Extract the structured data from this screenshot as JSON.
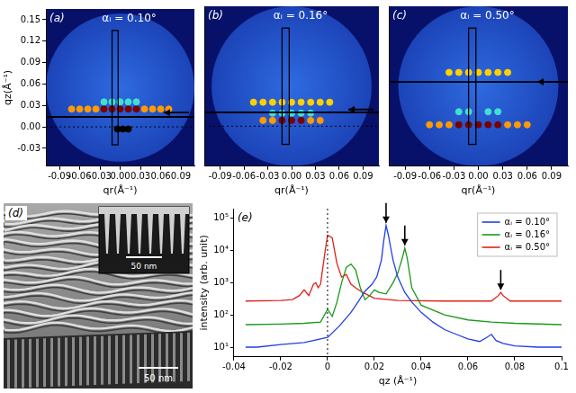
{
  "chart_data": [
    {
      "panel": "(a)",
      "type": "scatter",
      "title": "αᵢ = 0.10°",
      "x_label": "qr(Å⁻¹)",
      "y_label": "qz(Å⁻¹)",
      "xlim": [
        -0.11,
        0.11
      ],
      "ylim": [
        -0.055,
        0.165
      ],
      "xticks": [
        -0.09,
        -0.06,
        -0.03,
        {
          "value": 0,
          "label": "0.00"
        },
        0.03,
        0.06,
        0.09
      ],
      "yticks": [
        -0.03,
        {
          "value": 0,
          "label": "0.00"
        },
        0.03,
        0.06,
        0.09,
        0.12,
        0.15
      ],
      "cut_qz": 0.014,
      "arrow_qz": 0.02,
      "reference_qz": 0,
      "box": {
        "qr": [
          -0.012,
          -0.003
        ],
        "qz": [
          -0.025,
          0.135
        ]
      },
      "series": [
        {
          "color": "#ff9a00",
          "qz": 0.025,
          "qr": [
            -0.072,
            -0.06,
            -0.048,
            -0.036,
            0.036,
            0.048,
            0.06,
            0.072
          ]
        },
        {
          "color": "#40e0d0",
          "qz": 0.035,
          "qr": [
            -0.024,
            -0.012,
            0,
            0.012,
            0.024
          ]
        },
        {
          "color": "#7a0000",
          "qz": 0.025,
          "qr": [
            -0.024,
            -0.012,
            0,
            0.012,
            0.024
          ]
        },
        {
          "color": "#000000",
          "qz": -0.003,
          "qr": [
            -0.004,
            0.004,
            0.012
          ]
        }
      ]
    },
    {
      "panel": "(b)",
      "type": "scatter",
      "title": "αᵢ = 0.16°",
      "x_label": "qr(Å⁻¹)",
      "tick_labels": "x",
      "xlim": [
        -0.11,
        0.11
      ],
      "ylim": [
        -0.055,
        0.165
      ],
      "xticks": [
        -0.09,
        -0.06,
        -0.03,
        {
          "value": 0,
          "label": "0.00"
        },
        0.03,
        0.06,
        0.09
      ],
      "yticks": [
        -0.03,
        0,
        0.03,
        0.06,
        0.09,
        0.12,
        0.15
      ],
      "cut_qz": 0.019,
      "arrow_qz": 0.023,
      "reference_qz": 0,
      "box": {
        "qr": [
          -0.012,
          -0.003
        ],
        "qz": [
          -0.025,
          0.135
        ]
      },
      "series": [
        {
          "color": "#ffd000",
          "qz": 0.033,
          "qr": [
            -0.048,
            -0.036,
            -0.024,
            -0.012,
            0,
            0.012,
            0.024,
            0.036,
            0.048
          ]
        },
        {
          "color": "#40e0d0",
          "qz": 0.018,
          "qr": [
            -0.024,
            -0.012,
            0,
            0.012,
            0.024
          ]
        },
        {
          "color": "#ff9a00",
          "qz": 0.008,
          "qr": [
            -0.036,
            -0.024,
            0.024,
            0.036
          ]
        },
        {
          "color": "#7a0000",
          "qz": 0.008,
          "qr": [
            -0.012,
            0,
            0.012
          ]
        }
      ]
    },
    {
      "panel": "(c)",
      "type": "scatter",
      "title": "αᵢ = 0.50°",
      "x_label": "qr(Å⁻¹)",
      "tick_labels": "x",
      "xlim": [
        -0.11,
        0.11
      ],
      "ylim": [
        -0.055,
        0.165
      ],
      "xticks": [
        -0.09,
        -0.06,
        -0.03,
        {
          "value": 0,
          "label": "0.00"
        },
        0.03,
        0.06,
        0.09
      ],
      "yticks": [
        -0.03,
        0,
        0.03,
        0.06,
        0.09,
        0.12,
        0.15
      ],
      "cut_qz": 0.061,
      "arrow_qz": 0.061,
      "box": {
        "qr": [
          -0.012,
          -0.003
        ],
        "qz": [
          -0.025,
          0.135
        ]
      },
      "series": [
        {
          "color": "#ffd000",
          "qz": 0.074,
          "qr": [
            -0.036,
            -0.024,
            -0.012,
            0,
            0.012,
            0.024,
            0.036
          ]
        },
        {
          "color": "#40e0d0",
          "qz": 0.02,
          "qr": [
            -0.024,
            -0.012,
            0.012,
            0.024
          ]
        },
        {
          "color": "#ff9a00",
          "qz": 0.002,
          "qr": [
            -0.06,
            -0.048,
            -0.036,
            0.036,
            0.048,
            0.06
          ]
        },
        {
          "color": "#7a0000",
          "qz": 0.002,
          "qr": [
            -0.024,
            -0.012,
            0,
            0.012,
            0.024
          ]
        }
      ]
    },
    {
      "panel": "(e)",
      "type": "line",
      "x_label": "qz (Å⁻¹)",
      "y_label": "intensity (arb. unit)",
      "log": "y",
      "legend": "top-right",
      "xlim": [
        -0.04,
        0.1
      ],
      "ylim": [
        5,
        200000
      ],
      "xticks": [
        -0.04,
        -0.02,
        0,
        0.02,
        0.04,
        0.06,
        0.08,
        0.1
      ],
      "yticks": [
        {
          "value": 10,
          "label": "10¹"
        },
        {
          "value": 100,
          "label": "10²"
        },
        {
          "value": 1000,
          "label": "10³"
        },
        {
          "value": 10000,
          "label": "10⁴"
        },
        {
          "value": 100000,
          "label": "10⁵"
        }
      ],
      "reference_x": 0,
      "arrows": [
        {
          "x": 0.025,
          "y": 60000
        },
        {
          "x": 0.033,
          "y": 12000
        },
        {
          "x": 0.074,
          "y": 500
        }
      ],
      "series": [
        {
          "name": "αᵢ = 0.10°",
          "color": "#1f3fe6",
          "x": [
            -0.035,
            -0.03,
            -0.02,
            -0.01,
            0,
            0.005,
            0.01,
            0.013,
            0.016,
            0.019,
            0.021,
            0.023,
            0.024,
            0.025,
            0.026,
            0.027,
            0.028,
            0.03,
            0.033,
            0.036,
            0.04,
            0.045,
            0.05,
            0.055,
            0.06,
            0.065,
            0.068,
            0.07,
            0.072,
            0.075,
            0.08,
            0.09,
            0.1
          ],
          "values": [
            10,
            10,
            12,
            14,
            20,
            45,
            120,
            250,
            550,
            900,
            1500,
            5000,
            20000,
            60000,
            30000,
            12000,
            5000,
            1500,
            500,
            250,
            120,
            60,
            35,
            25,
            18,
            15,
            20,
            25,
            16,
            13,
            11,
            10,
            10
          ]
        },
        {
          "name": "αᵢ = 0.16°",
          "color": "#1a9a1a",
          "x": [
            -0.035,
            -0.02,
            -0.01,
            -0.003,
            0,
            0.002,
            0.004,
            0.006,
            0.008,
            0.01,
            0.012,
            0.014,
            0.016,
            0.018,
            0.02,
            0.022,
            0.025,
            0.028,
            0.03,
            0.032,
            0.033,
            0.034,
            0.036,
            0.04,
            0.05,
            0.06,
            0.07,
            0.08,
            0.1
          ],
          "values": [
            50,
            52,
            55,
            60,
            150,
            90,
            250,
            1000,
            3000,
            3800,
            2500,
            700,
            300,
            400,
            600,
            500,
            450,
            1000,
            2000,
            6000,
            12000,
            6000,
            700,
            200,
            100,
            70,
            60,
            55,
            50
          ]
        },
        {
          "name": "αᵢ = 0.50°",
          "color": "#e0201a",
          "x": [
            -0.035,
            -0.02,
            -0.015,
            -0.012,
            -0.01,
            -0.008,
            -0.006,
            -0.005,
            -0.004,
            -0.003,
            -0.001,
            0,
            0.002,
            0.004,
            0.006,
            0.008,
            0.01,
            0.012,
            0.015,
            0.02,
            0.03,
            0.05,
            0.07,
            0.073,
            0.074,
            0.075,
            0.078,
            0.1
          ],
          "values": [
            270,
            280,
            300,
            400,
            600,
            400,
            900,
            1000,
            700,
            900,
            10000,
            30000,
            25000,
            4000,
            1500,
            1800,
            900,
            700,
            500,
            330,
            280,
            270,
            270,
            400,
            500,
            400,
            270,
            270
          ]
        }
      ]
    }
  ],
  "sem_image": {
    "panel": "(d)",
    "scale_bar": "50 nm",
    "inset_scale_bar": "50 nm"
  }
}
